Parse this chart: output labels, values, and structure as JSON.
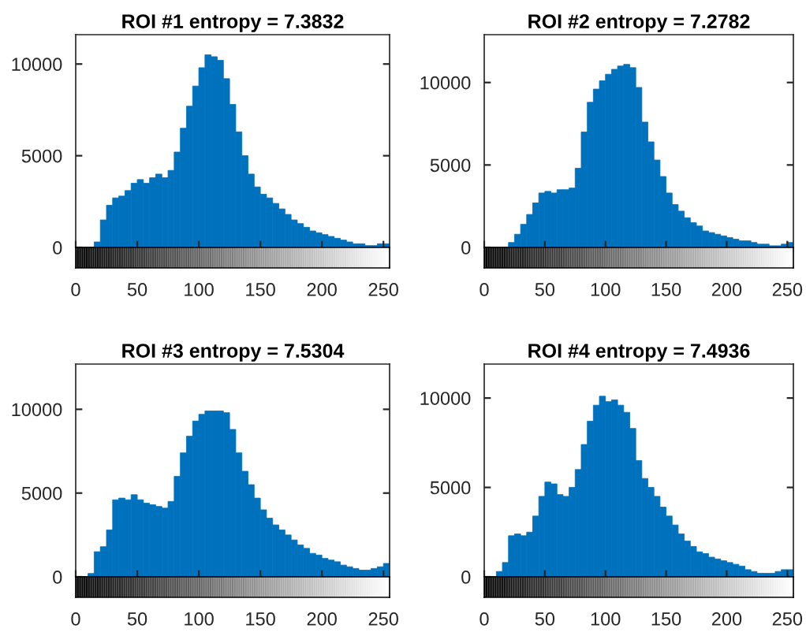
{
  "chart_data": [
    {
      "type": "histogram",
      "title": "ROI #1 entropy = 7.3832",
      "color": "#0072bd",
      "bins": [
        0,
        5,
        10,
        15,
        20,
        25,
        30,
        35,
        40,
        45,
        50,
        55,
        60,
        65,
        70,
        75,
        80,
        85,
        90,
        95,
        100,
        105,
        110,
        115,
        120,
        125,
        130,
        135,
        140,
        145,
        150,
        155,
        160,
        165,
        170,
        175,
        180,
        185,
        190,
        195,
        200,
        205,
        210,
        215,
        220,
        225,
        230,
        235,
        240,
        245,
        250,
        255
      ],
      "values": [
        0,
        0,
        0,
        300,
        1500,
        2300,
        2700,
        2800,
        3100,
        3500,
        3700,
        3500,
        3800,
        4000,
        3800,
        4200,
        5200,
        6500,
        7700,
        8800,
        9800,
        10500,
        10400,
        10200,
        9200,
        7800,
        6300,
        5000,
        4000,
        3300,
        2900,
        2700,
        2400,
        2100,
        1800,
        1500,
        1300,
        1100,
        900,
        800,
        700,
        600,
        500,
        400,
        300,
        200,
        200,
        100,
        100,
        200,
        200
      ],
      "xlim": [
        0,
        255
      ],
      "ylim": [
        0,
        11600
      ],
      "xticks": [
        0,
        50,
        100,
        150,
        200,
        250
      ],
      "yticks": [
        0,
        5000,
        10000
      ]
    },
    {
      "type": "histogram",
      "title": "ROI #2 entropy = 7.2782",
      "color": "#0072bd",
      "bins": [
        0,
        5,
        10,
        15,
        20,
        25,
        30,
        35,
        40,
        45,
        50,
        55,
        60,
        65,
        70,
        75,
        80,
        85,
        90,
        95,
        100,
        105,
        110,
        115,
        120,
        125,
        130,
        135,
        140,
        145,
        150,
        155,
        160,
        165,
        170,
        175,
        180,
        185,
        190,
        195,
        200,
        205,
        210,
        215,
        220,
        225,
        230,
        235,
        240,
        245,
        250,
        255
      ],
      "values": [
        0,
        0,
        0,
        0,
        300,
        800,
        1400,
        2000,
        2700,
        3300,
        3400,
        3300,
        3500,
        3500,
        3600,
        4800,
        7000,
        8800,
        9600,
        10100,
        10500,
        10800,
        11000,
        11100,
        10900,
        9700,
        7600,
        6400,
        5300,
        4300,
        3300,
        2600,
        2200,
        1800,
        1500,
        1300,
        1000,
        900,
        800,
        700,
        600,
        500,
        400,
        400,
        300,
        200,
        200,
        100,
        100,
        200,
        300
      ],
      "xlim": [
        0,
        255
      ],
      "ylim": [
        0,
        12900
      ],
      "xticks": [
        0,
        50,
        100,
        150,
        200,
        250
      ],
      "yticks": [
        0,
        5000,
        10000
      ]
    },
    {
      "type": "histogram",
      "title": "ROI #3 entropy = 7.5304",
      "color": "#0072bd",
      "bins": [
        0,
        5,
        10,
        15,
        20,
        25,
        30,
        35,
        40,
        45,
        50,
        55,
        60,
        65,
        70,
        75,
        80,
        85,
        90,
        95,
        100,
        105,
        110,
        115,
        120,
        125,
        130,
        135,
        140,
        145,
        150,
        155,
        160,
        165,
        170,
        175,
        180,
        185,
        190,
        195,
        200,
        205,
        210,
        215,
        220,
        225,
        230,
        235,
        240,
        245,
        250,
        255
      ],
      "values": [
        0,
        0,
        200,
        1500,
        1800,
        2800,
        4600,
        4700,
        4600,
        4900,
        4600,
        4400,
        4300,
        4200,
        4100,
        4500,
        6000,
        7400,
        8400,
        9300,
        9700,
        9900,
        9900,
        9900,
        9800,
        8800,
        7400,
        6300,
        5500,
        4700,
        4000,
        3500,
        3100,
        2800,
        2500,
        2200,
        1900,
        1700,
        1400,
        1300,
        1100,
        1000,
        900,
        700,
        600,
        500,
        400,
        400,
        500,
        600,
        800
      ],
      "xlim": [
        0,
        255
      ],
      "ylim": [
        0,
        12700
      ],
      "xticks": [
        0,
        50,
        100,
        150,
        200,
        250
      ],
      "yticks": [
        0,
        5000,
        10000
      ]
    },
    {
      "type": "histogram",
      "title": "ROI #4 entropy = 7.4936",
      "color": "#0072bd",
      "bins": [
        0,
        5,
        10,
        15,
        20,
        25,
        30,
        35,
        40,
        45,
        50,
        55,
        60,
        65,
        70,
        75,
        80,
        85,
        90,
        95,
        100,
        105,
        110,
        115,
        120,
        125,
        130,
        135,
        140,
        145,
        150,
        155,
        160,
        165,
        170,
        175,
        180,
        185,
        190,
        195,
        200,
        205,
        210,
        215,
        220,
        225,
        230,
        235,
        240,
        245,
        250,
        255
      ],
      "values": [
        0,
        0,
        300,
        800,
        2300,
        2400,
        2300,
        2500,
        3400,
        4500,
        5300,
        5200,
        4600,
        4500,
        5000,
        6000,
        7400,
        8700,
        9600,
        10100,
        9800,
        9900,
        9600,
        9200,
        8300,
        6500,
        5500,
        5000,
        4500,
        3900,
        3400,
        2900,
        2400,
        2000,
        1700,
        1400,
        1300,
        1100,
        1000,
        900,
        800,
        700,
        600,
        400,
        300,
        200,
        200,
        200,
        300,
        400,
        400
      ],
      "xlim": [
        0,
        255
      ],
      "ylim": [
        0,
        11900
      ],
      "xticks": [
        0,
        50,
        100,
        150,
        200,
        250
      ],
      "yticks": [
        0,
        5000,
        10000
      ]
    }
  ]
}
